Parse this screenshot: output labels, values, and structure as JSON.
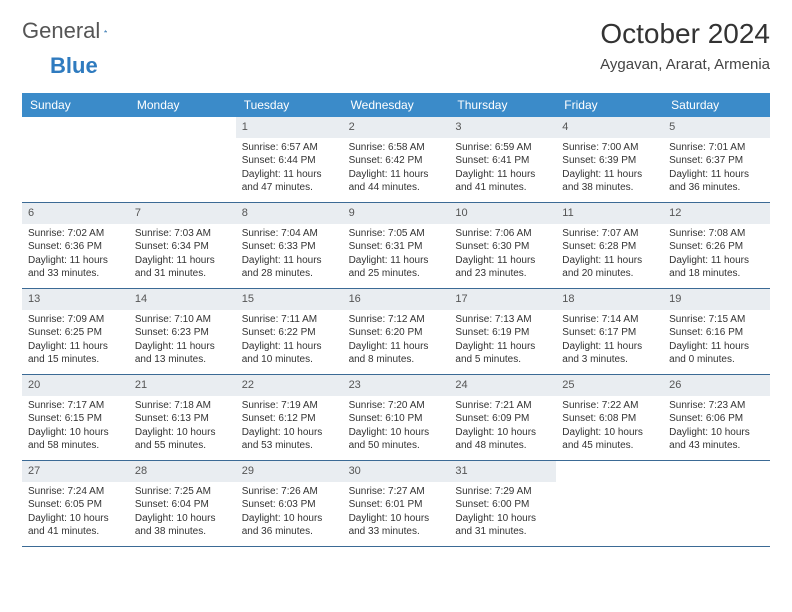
{
  "logo": {
    "text_a": "General",
    "text_b": "Blue"
  },
  "title": "October 2024",
  "location": "Aygavan, Ararat, Armenia",
  "colors": {
    "header_bg": "#3b8bc9",
    "header_text": "#ffffff",
    "daynum_bg": "#e9edf1",
    "border": "#3b6a95",
    "logo_blue": "#2f7bbf"
  },
  "weekdays": [
    "Sunday",
    "Monday",
    "Tuesday",
    "Wednesday",
    "Thursday",
    "Friday",
    "Saturday"
  ],
  "weeks": [
    [
      null,
      null,
      {
        "n": "1",
        "sr": "6:57 AM",
        "ss": "6:44 PM",
        "dl": "11 hours and 47 minutes."
      },
      {
        "n": "2",
        "sr": "6:58 AM",
        "ss": "6:42 PM",
        "dl": "11 hours and 44 minutes."
      },
      {
        "n": "3",
        "sr": "6:59 AM",
        "ss": "6:41 PM",
        "dl": "11 hours and 41 minutes."
      },
      {
        "n": "4",
        "sr": "7:00 AM",
        "ss": "6:39 PM",
        "dl": "11 hours and 38 minutes."
      },
      {
        "n": "5",
        "sr": "7:01 AM",
        "ss": "6:37 PM",
        "dl": "11 hours and 36 minutes."
      }
    ],
    [
      {
        "n": "6",
        "sr": "7:02 AM",
        "ss": "6:36 PM",
        "dl": "11 hours and 33 minutes."
      },
      {
        "n": "7",
        "sr": "7:03 AM",
        "ss": "6:34 PM",
        "dl": "11 hours and 31 minutes."
      },
      {
        "n": "8",
        "sr": "7:04 AM",
        "ss": "6:33 PM",
        "dl": "11 hours and 28 minutes."
      },
      {
        "n": "9",
        "sr": "7:05 AM",
        "ss": "6:31 PM",
        "dl": "11 hours and 25 minutes."
      },
      {
        "n": "10",
        "sr": "7:06 AM",
        "ss": "6:30 PM",
        "dl": "11 hours and 23 minutes."
      },
      {
        "n": "11",
        "sr": "7:07 AM",
        "ss": "6:28 PM",
        "dl": "11 hours and 20 minutes."
      },
      {
        "n": "12",
        "sr": "7:08 AM",
        "ss": "6:26 PM",
        "dl": "11 hours and 18 minutes."
      }
    ],
    [
      {
        "n": "13",
        "sr": "7:09 AM",
        "ss": "6:25 PM",
        "dl": "11 hours and 15 minutes."
      },
      {
        "n": "14",
        "sr": "7:10 AM",
        "ss": "6:23 PM",
        "dl": "11 hours and 13 minutes."
      },
      {
        "n": "15",
        "sr": "7:11 AM",
        "ss": "6:22 PM",
        "dl": "11 hours and 10 minutes."
      },
      {
        "n": "16",
        "sr": "7:12 AM",
        "ss": "6:20 PM",
        "dl": "11 hours and 8 minutes."
      },
      {
        "n": "17",
        "sr": "7:13 AM",
        "ss": "6:19 PM",
        "dl": "11 hours and 5 minutes."
      },
      {
        "n": "18",
        "sr": "7:14 AM",
        "ss": "6:17 PM",
        "dl": "11 hours and 3 minutes."
      },
      {
        "n": "19",
        "sr": "7:15 AM",
        "ss": "6:16 PM",
        "dl": "11 hours and 0 minutes."
      }
    ],
    [
      {
        "n": "20",
        "sr": "7:17 AM",
        "ss": "6:15 PM",
        "dl": "10 hours and 58 minutes."
      },
      {
        "n": "21",
        "sr": "7:18 AM",
        "ss": "6:13 PM",
        "dl": "10 hours and 55 minutes."
      },
      {
        "n": "22",
        "sr": "7:19 AM",
        "ss": "6:12 PM",
        "dl": "10 hours and 53 minutes."
      },
      {
        "n": "23",
        "sr": "7:20 AM",
        "ss": "6:10 PM",
        "dl": "10 hours and 50 minutes."
      },
      {
        "n": "24",
        "sr": "7:21 AM",
        "ss": "6:09 PM",
        "dl": "10 hours and 48 minutes."
      },
      {
        "n": "25",
        "sr": "7:22 AM",
        "ss": "6:08 PM",
        "dl": "10 hours and 45 minutes."
      },
      {
        "n": "26",
        "sr": "7:23 AM",
        "ss": "6:06 PM",
        "dl": "10 hours and 43 minutes."
      }
    ],
    [
      {
        "n": "27",
        "sr": "7:24 AM",
        "ss": "6:05 PM",
        "dl": "10 hours and 41 minutes."
      },
      {
        "n": "28",
        "sr": "7:25 AM",
        "ss": "6:04 PM",
        "dl": "10 hours and 38 minutes."
      },
      {
        "n": "29",
        "sr": "7:26 AM",
        "ss": "6:03 PM",
        "dl": "10 hours and 36 minutes."
      },
      {
        "n": "30",
        "sr": "7:27 AM",
        "ss": "6:01 PM",
        "dl": "10 hours and 33 minutes."
      },
      {
        "n": "31",
        "sr": "7:29 AM",
        "ss": "6:00 PM",
        "dl": "10 hours and 31 minutes."
      },
      null,
      null
    ]
  ],
  "labels": {
    "sunrise": "Sunrise:",
    "sunset": "Sunset:",
    "daylight": "Daylight:"
  }
}
